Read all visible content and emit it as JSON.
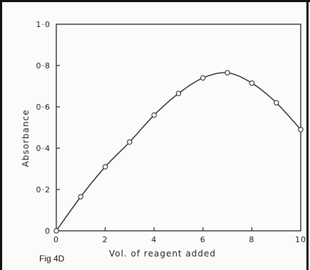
{
  "figure_label": "Fig 4D",
  "colors": {
    "ink": "#222222",
    "paper": "#fbfbf9"
  },
  "chart_data": {
    "type": "line",
    "title": "",
    "xlabel": "Vol. of reagent added",
    "ylabel": "Absorbance",
    "xlim": [
      0,
      10
    ],
    "ylim": [
      0,
      1.0
    ],
    "x_ticks": [
      0,
      2,
      4,
      6,
      8,
      10
    ],
    "x_tick_labels": [
      "0",
      "2",
      "4",
      "6",
      "8",
      "10"
    ],
    "y_ticks": [
      0,
      0.2,
      0.4,
      0.6,
      0.8,
      1.0
    ],
    "y_tick_labels": [
      "0",
      "0·2",
      "0·4",
      "0·6",
      "0·8",
      "1·0"
    ],
    "grid": false,
    "series": [
      {
        "x": [
          0,
          1,
          2,
          3,
          4,
          5,
          6,
          7,
          8,
          9,
          10
        ],
        "y": [
          0.0,
          0.165,
          0.31,
          0.43,
          0.56,
          0.665,
          0.74,
          0.765,
          0.715,
          0.62,
          0.49
        ],
        "marker": "open-circle",
        "smooth": true
      }
    ]
  }
}
